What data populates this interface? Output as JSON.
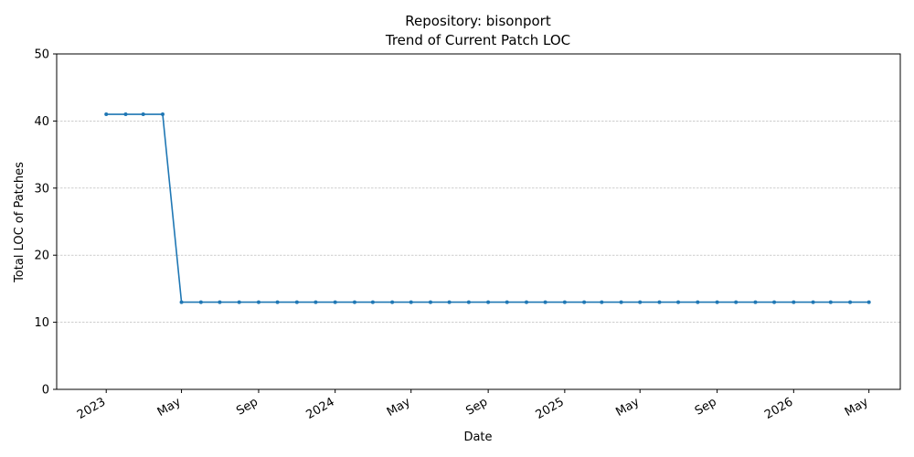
{
  "chart_data": {
    "type": "line",
    "title": "Repository: bisonport",
    "subtitle": "Trend of Current Patch LOC",
    "xlabel": "Date",
    "ylabel": "Total LOC of Patches",
    "ylim": [
      0,
      50
    ],
    "xlim": [
      "2022-10-14",
      "2026-06-20"
    ],
    "y_ticks": [
      0,
      10,
      20,
      30,
      40,
      50
    ],
    "x_ticks": [
      {
        "date": "2023-01-01",
        "label": "2023"
      },
      {
        "date": "2023-05-01",
        "label": "May"
      },
      {
        "date": "2023-09-01",
        "label": "Sep"
      },
      {
        "date": "2024-01-01",
        "label": "2024"
      },
      {
        "date": "2024-05-01",
        "label": "May"
      },
      {
        "date": "2024-09-01",
        "label": "Sep"
      },
      {
        "date": "2025-01-01",
        "label": "2025"
      },
      {
        "date": "2025-05-01",
        "label": "May"
      },
      {
        "date": "2025-09-01",
        "label": "Sep"
      },
      {
        "date": "2026-01-01",
        "label": "2026"
      },
      {
        "date": "2026-05-01",
        "label": "May"
      }
    ],
    "grid": "y-dashed",
    "series_color": "#1f77b4",
    "series": [
      {
        "x": [
          "2023-01-01",
          "2023-02-01",
          "2023-03-01",
          "2023-04-01",
          "2023-05-01",
          "2023-06-01",
          "2023-07-01",
          "2023-08-01",
          "2023-09-01",
          "2023-10-01",
          "2023-11-01",
          "2023-12-01",
          "2024-01-01",
          "2024-02-01",
          "2024-03-01",
          "2024-04-01",
          "2024-05-01",
          "2024-06-01",
          "2024-07-01",
          "2024-08-01",
          "2024-09-01",
          "2024-10-01",
          "2024-11-01",
          "2024-12-01",
          "2025-01-01",
          "2025-02-01",
          "2025-03-01",
          "2025-04-01",
          "2025-05-01",
          "2025-06-01",
          "2025-07-01",
          "2025-08-01",
          "2025-09-01",
          "2025-10-01",
          "2025-11-01",
          "2025-12-01",
          "2026-01-01",
          "2026-02-01",
          "2026-03-01",
          "2026-04-01",
          "2026-05-01"
        ],
        "values": [
          41,
          41,
          41,
          41,
          13,
          13,
          13,
          13,
          13,
          13,
          13,
          13,
          13,
          13,
          13,
          13,
          13,
          13,
          13,
          13,
          13,
          13,
          13,
          13,
          13,
          13,
          13,
          13,
          13,
          13,
          13,
          13,
          13,
          13,
          13,
          13,
          13,
          13,
          13,
          13,
          13
        ]
      }
    ]
  }
}
